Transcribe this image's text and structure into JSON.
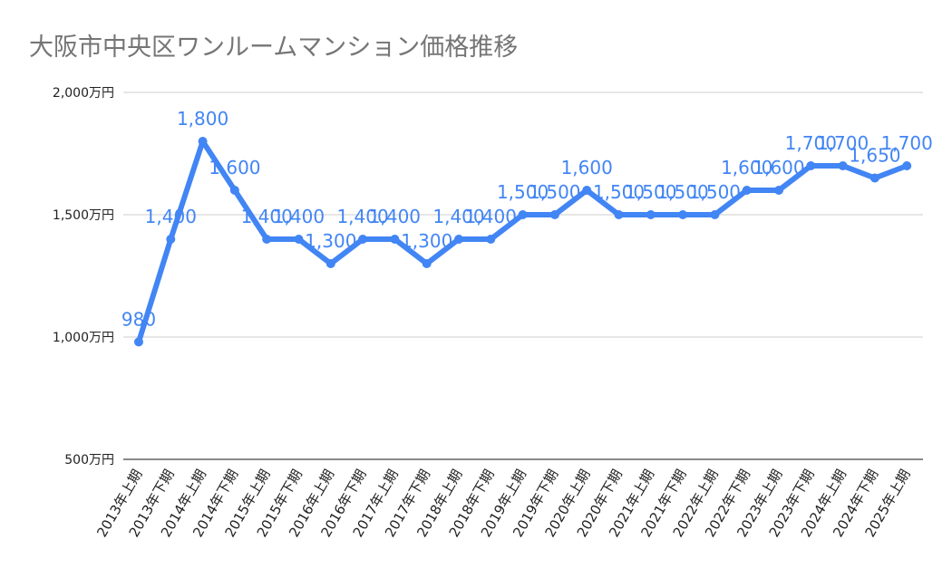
{
  "chart_data": {
    "type": "line",
    "title": "大阪市中央区ワンルームマンション価格推移",
    "categories": [
      "2013年上期",
      "2013年下期",
      "2014年上期",
      "2014年下期",
      "2015年上期",
      "2015年下期",
      "2016年上期",
      "2016年下期",
      "2017年上期",
      "2017年下期",
      "2018年上期",
      "2018年下期",
      "2019年上期",
      "2019年下期",
      "2020年上期",
      "2020年下期",
      "2021年上期",
      "2021年下期",
      "2022年上期",
      "2022年下期",
      "2023年上期",
      "2023年下期",
      "2024年上期",
      "2024年下期",
      "2025年上期"
    ],
    "series": [
      {
        "values": [
          980,
          1400,
          1800,
          1600,
          1400,
          1400,
          1300,
          1400,
          1400,
          1300,
          1400,
          1400,
          1500,
          1500,
          1600,
          1500,
          1500,
          1500,
          1500,
          1600,
          1600,
          1700,
          1700,
          1650,
          1700
        ],
        "color": "#4285f4"
      }
    ],
    "data_labels": [
      "980",
      "1,400",
      "1,800",
      "1,600",
      "1,400",
      "1,400",
      "1,300",
      "1,400",
      "1,400",
      "1,300",
      "1,400",
      "1,400",
      "1,500",
      "1,500",
      "1,600",
      "1,500",
      "1,500",
      "1,500",
      "1,500",
      "1,600",
      "1,600",
      "1,700",
      "1,700",
      "1,650",
      "1,700"
    ],
    "yticks": [
      500,
      1000,
      1500,
      2000
    ],
    "ytick_labels": [
      "500万円",
      "1,000万円",
      "1,500万円",
      "2,000万円"
    ],
    "ylim": [
      500,
      2000
    ],
    "grid": true,
    "xlabel": "",
    "ylabel": ""
  }
}
